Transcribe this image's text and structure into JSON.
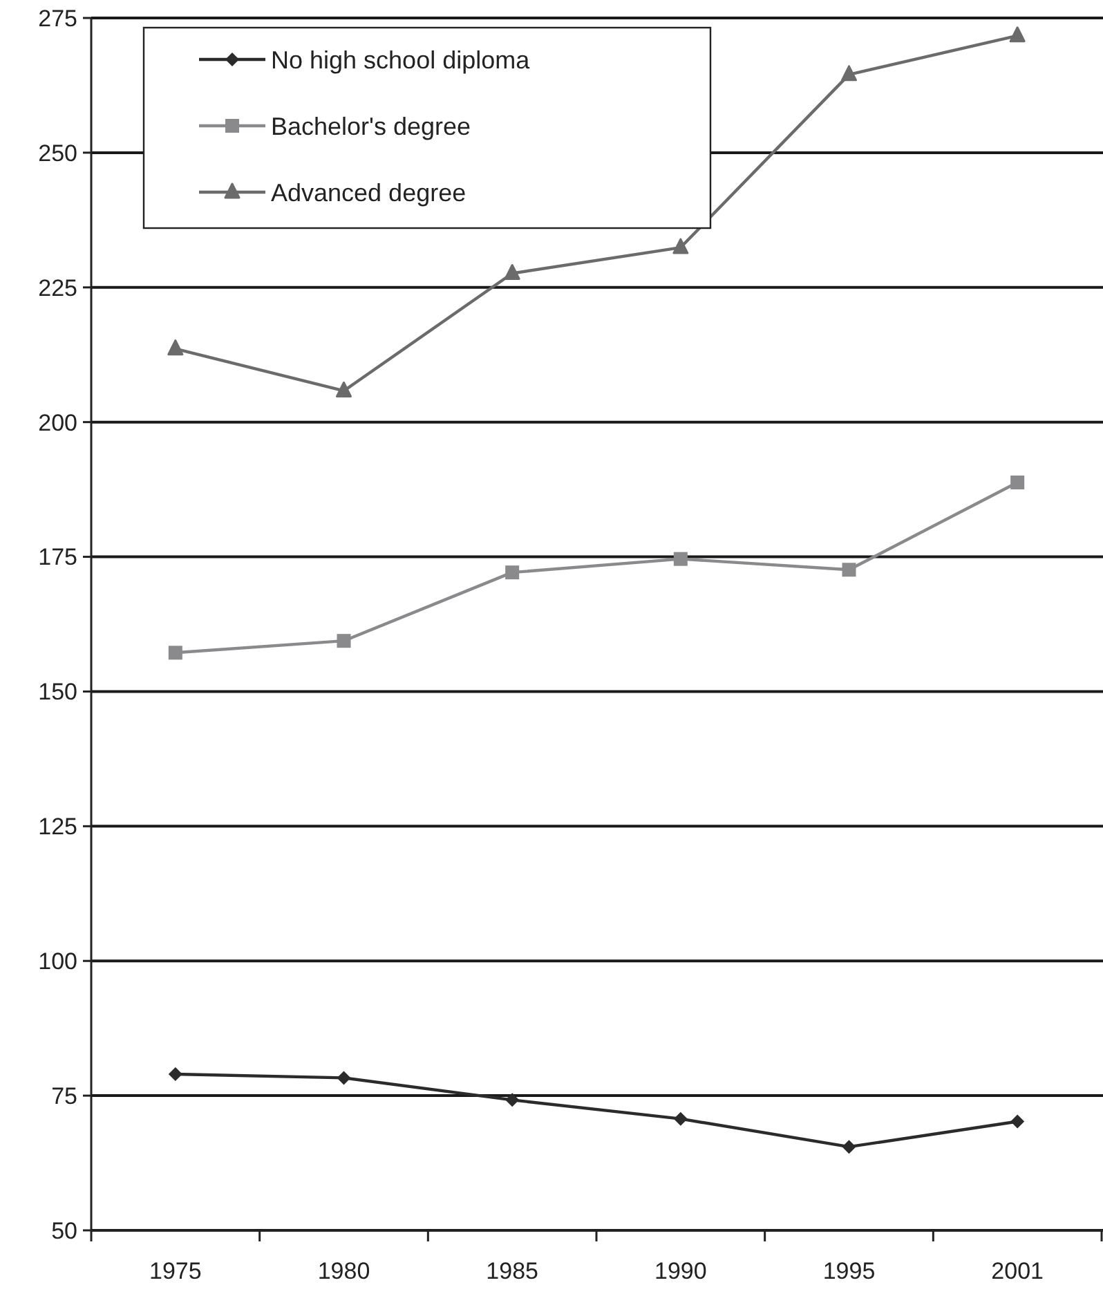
{
  "chart_data": {
    "type": "line",
    "categories": [
      "1975",
      "1980",
      "1985",
      "1990",
      "1995",
      "2001"
    ],
    "series": [
      {
        "name": "No high school diploma",
        "color": "#2b2b2b",
        "marker": "diamond",
        "values": [
          79.0,
          78.3,
          74.2,
          70.7,
          65.5,
          70.2
        ]
      },
      {
        "name": "Bachelor's degree",
        "color": "#8a8a8c",
        "marker": "square",
        "values": [
          157.2,
          159.4,
          172.1,
          174.6,
          172.6,
          188.8
        ]
      },
      {
        "name": "Advanced degree",
        "color": "#6b6b6b",
        "marker": "triangle",
        "values": [
          213.6,
          205.8,
          227.6,
          232.4,
          264.5,
          271.7
        ]
      }
    ],
    "ylim": [
      50,
      275
    ],
    "yticks": [
      50,
      75,
      100,
      125,
      150,
      175,
      200,
      225,
      250,
      275
    ],
    "grid": "y",
    "legend": "top left"
  }
}
